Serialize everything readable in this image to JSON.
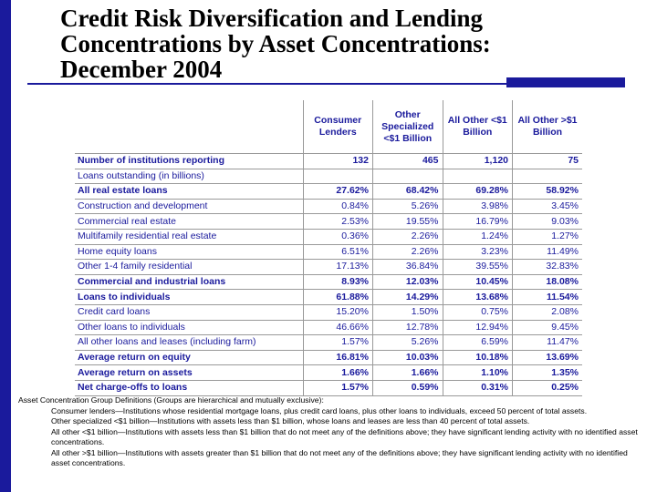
{
  "title": {
    "line1": "Credit Risk Diversification and Lending",
    "line2": "Concentrations by Asset Concentrations:",
    "line3": "December 2004"
  },
  "table": {
    "headers": [
      "Consumer Lenders",
      "Other Specialized <$1 Billion",
      "All Other <$1 Billion",
      "All Other >$1 Billion"
    ],
    "rows": [
      {
        "label": "Number of institutions reporting",
        "values": [
          "132",
          "465",
          "1,120",
          "75"
        ]
      },
      {
        "label": "Loans outstanding (in billions)",
        "values": [
          "",
          "",
          "",
          ""
        ]
      },
      {
        "label": "All real estate loans",
        "values": [
          "27.62%",
          "68.42%",
          "69.28%",
          "58.92%"
        ]
      },
      {
        "label": "Construction and development",
        "values": [
          "0.84%",
          "5.26%",
          "3.98%",
          "3.45%"
        ]
      },
      {
        "label": "Commercial real estate",
        "values": [
          "2.53%",
          "19.55%",
          "16.79%",
          "9.03%"
        ]
      },
      {
        "label": "Multifamily residential real estate",
        "values": [
          "0.36%",
          "2.26%",
          "1.24%",
          "1.27%"
        ]
      },
      {
        "label": "Home equity loans",
        "values": [
          "6.51%",
          "2.26%",
          "3.23%",
          "11.49%"
        ]
      },
      {
        "label": "Other 1-4 family residential",
        "values": [
          "17.13%",
          "36.84%",
          "39.55%",
          "32.83%"
        ]
      },
      {
        "label": "Commercial and industrial loans",
        "values": [
          "8.93%",
          "12.03%",
          "10.45%",
          "18.08%"
        ]
      },
      {
        "label": "Loans to individuals",
        "values": [
          "61.88%",
          "14.29%",
          "13.68%",
          "11.54%"
        ]
      },
      {
        "label": "Credit card loans",
        "values": [
          "15.20%",
          "1.50%",
          "0.75%",
          "2.08%"
        ]
      },
      {
        "label": "Other loans to individuals",
        "values": [
          "46.66%",
          "12.78%",
          "12.94%",
          "9.45%"
        ]
      },
      {
        "label": "All other loans and leases (including farm)",
        "values": [
          "1.57%",
          "5.26%",
          "6.59%",
          "11.47%"
        ]
      },
      {
        "label": "Average return on equity",
        "values": [
          "16.81%",
          "10.03%",
          "10.18%",
          "13.69%"
        ]
      },
      {
        "label": "Average return on assets",
        "values": [
          "1.66%",
          "1.66%",
          "1.10%",
          "1.35%"
        ]
      },
      {
        "label": "Net charge-offs to loans",
        "values": [
          "1.57%",
          "0.59%",
          "0.31%",
          "0.25%"
        ]
      }
    ]
  },
  "definitions": {
    "heading": "Asset Concentration Group Definitions (Groups are hierarchical and mutually exclusive):",
    "items": [
      "Consumer lenders—Institutions whose residential mortgage loans, plus credit card loans, plus other loans to individuals, exceed 50 percent of total assets.",
      "Other specialized <$1 billion—Institutions with assets less than $1 billion, whose loans and leases are less than 40 percent of total assets.",
      "All other <$1 billion—Institutions with assets less than $1 billion that do not meet any of the definitions above; they have significant lending activity with no identified asset concentrations.",
      "All other >$1 billion—Institutions with assets greater than $1 billion that do not meet any of the definitions above; they have significant lending activity with no identified asset concentrations."
    ]
  },
  "colors": {
    "accent": "#1a1a9c"
  }
}
